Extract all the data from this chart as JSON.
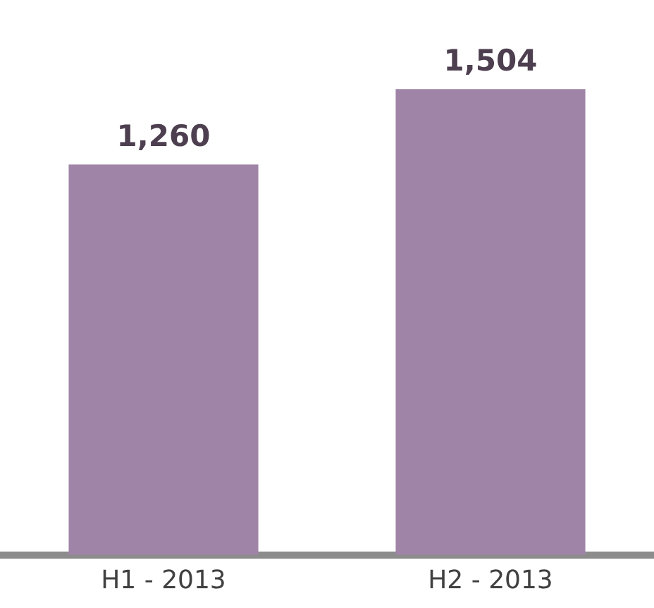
{
  "chart_data": {
    "type": "bar",
    "categories": [
      "H1 - 2013",
      "H2 - 2013"
    ],
    "values": [
      1260,
      1504
    ],
    "value_labels": [
      "1,260",
      "1,504"
    ],
    "color": "#a084a8",
    "grid": false,
    "legend": false
  }
}
